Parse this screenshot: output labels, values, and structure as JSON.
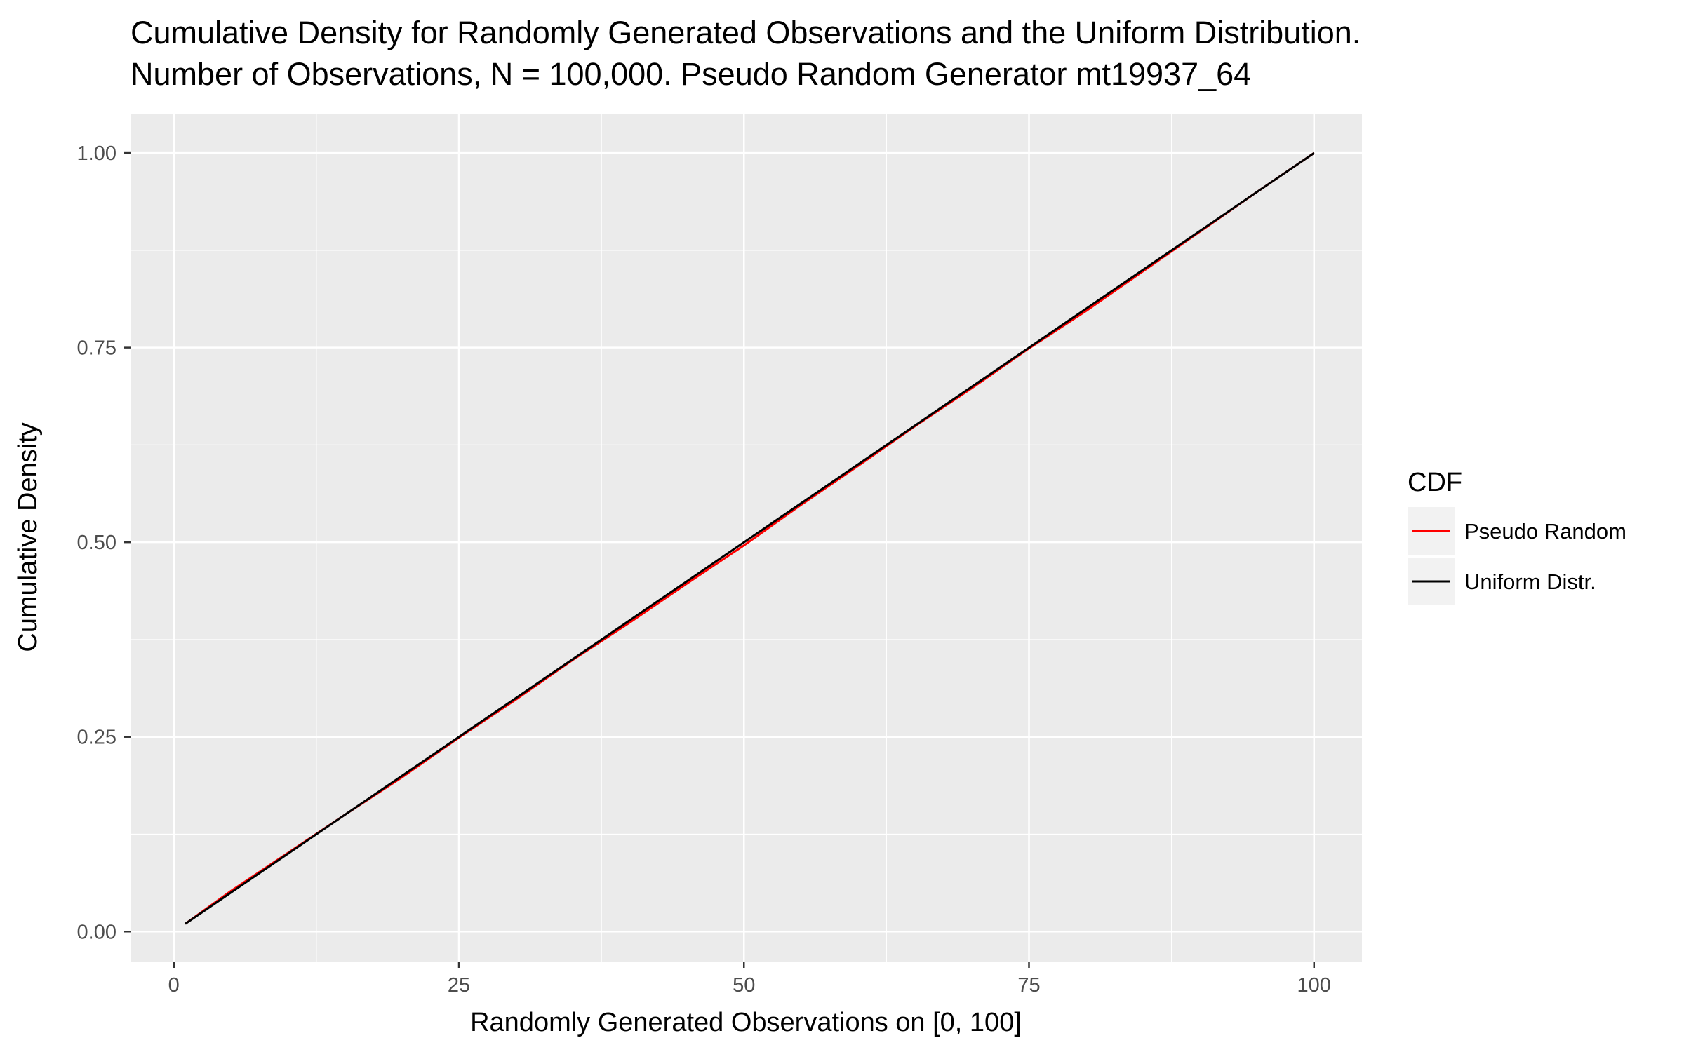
{
  "chart_data": {
    "type": "line",
    "title_line1": "Cumulative Density for Randomly Generated Observations and the Uniform Distribution.",
    "title_line2": "Number of Observations, N = 100,000. Pseudo Random Generator mt19937_64",
    "xlabel": "Randomly Generated Observations on [0, 100]",
    "ylabel": "Cumulative Density",
    "xlim": [
      -3.8,
      104.2
    ],
    "ylim": [
      -0.0385,
      1.0505
    ],
    "x_ticks": [
      0,
      25,
      50,
      75,
      100
    ],
    "x_tick_labels": [
      "0",
      "25",
      "50",
      "75",
      "100"
    ],
    "y_ticks": [
      0.0,
      0.25,
      0.5,
      0.75,
      1.0
    ],
    "y_tick_labels": [
      "0.00",
      "0.25",
      "0.50",
      "0.75",
      "1.00"
    ],
    "grid": true,
    "panel_background": "#ebebeb",
    "legend": {
      "title": "CDF",
      "position": "right"
    },
    "series": [
      {
        "name": "Pseudo Random",
        "color": "#ff0000",
        "x": [
          1,
          5,
          10,
          15,
          20,
          25,
          30,
          35,
          40,
          45,
          50,
          55,
          60,
          65,
          70,
          75,
          80,
          85,
          90,
          95,
          100
        ],
        "y": [
          0.01,
          0.052,
          0.101,
          0.15,
          0.198,
          0.249,
          0.298,
          0.349,
          0.397,
          0.447,
          0.496,
          0.548,
          0.598,
          0.649,
          0.698,
          0.749,
          0.797,
          0.848,
          0.899,
          0.95,
          1.0
        ]
      },
      {
        "name": "Uniform Distr.",
        "color": "#000000",
        "x": [
          1,
          100
        ],
        "y": [
          0.01,
          1.0
        ]
      }
    ]
  }
}
